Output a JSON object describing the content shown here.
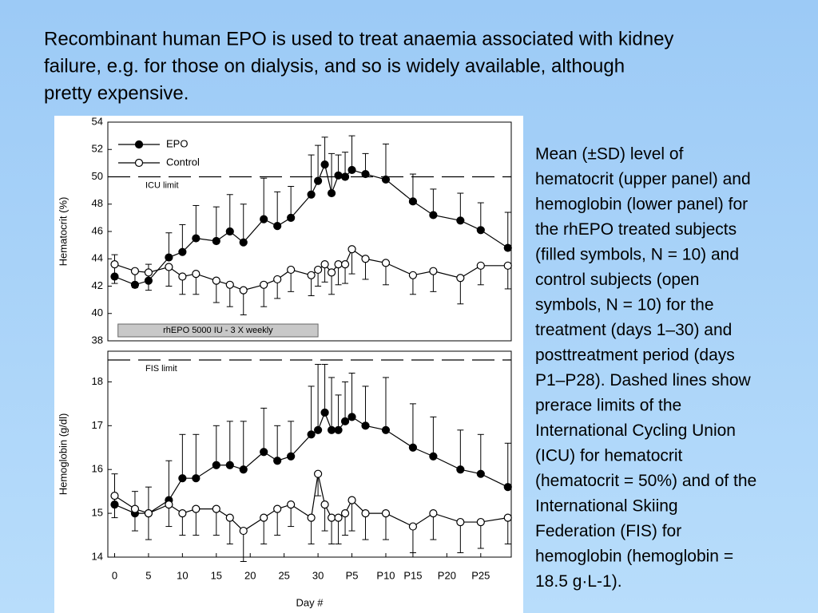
{
  "heading": [
    "Recombinant human EPO is used to treat anaemia associated with kidney",
    "failure, e.g. for those on dialysis, and so is widely available, although",
    "pretty expensive."
  ],
  "caption": [
    "Mean (±SD) level of",
    "hematocrit (upper panel) and",
    "hemoglobin (lower panel) for",
    "the rhEPO treated subjects",
    "(filled symbols, N = 10) and",
    "control subjects (open",
    "symbols, N = 10) for the",
    "treatment (days 1–30) and",
    "posttreatment period (days",
    "P1–P28). Dashed lines show",
    "prerace limits of the",
    "International Cycling Union",
    "(ICU) for hematocrit",
    "(hematocrit = 50%) and of the",
    "International Skiing",
    "Federation (FIS) for",
    "hemoglobin (hemoglobin =",
    "18.5 g·L-1)."
  ],
  "chart_data": [
    {
      "type": "line",
      "ylabel": "Hematocrit (%)",
      "legend": true,
      "x": [
        0,
        3,
        5,
        8,
        10,
        12,
        15,
        17,
        19,
        22,
        24,
        26,
        29,
        30,
        31,
        32,
        33,
        34,
        35,
        37,
        40,
        44,
        47,
        51,
        54,
        58
      ],
      "xlim": [
        -1,
        58.5
      ],
      "ylim": [
        38,
        54
      ],
      "yticks": [
        38,
        40,
        42,
        44,
        46,
        48,
        50,
        52,
        54
      ],
      "reference_line": {
        "value": 50,
        "label": "ICU limit"
      },
      "annotation": {
        "text": "rhEPO 5000 IU - 3 X weekly",
        "x": [
          0.5,
          30
        ]
      },
      "series": [
        {
          "name": "EPO",
          "color": "#000000",
          "marker_fill": "#000000",
          "error_direction": "up",
          "values": [
            42.7,
            42.1,
            42.4,
            44.1,
            44.5,
            45.5,
            45.3,
            46.0,
            45.2,
            46.9,
            46.4,
            47.0,
            48.7,
            49.7,
            50.9,
            48.8,
            50.1,
            50.0,
            50.5,
            50.2,
            49.8,
            48.2,
            47.2,
            46.8,
            46.1,
            44.8
          ],
          "errors": [
            1.6,
            1.0,
            1.2,
            1.8,
            2.0,
            2.4,
            2.5,
            2.7,
            2.8,
            3.0,
            2.5,
            2.3,
            2.9,
            2.6,
            2.0,
            2.9,
            1.5,
            1.8,
            2.5,
            1.5,
            2.6,
            2.0,
            1.9,
            2.0,
            2.0,
            2.6
          ]
        },
        {
          "name": "Control",
          "color": "#000000",
          "marker_fill": "#ffffff",
          "error_direction": "down",
          "values": [
            43.6,
            43.1,
            43.0,
            43.4,
            42.7,
            42.9,
            42.4,
            42.1,
            41.7,
            42.1,
            42.5,
            43.2,
            42.8,
            43.2,
            43.6,
            43.0,
            43.6,
            43.6,
            44.7,
            44.0,
            43.7,
            42.8,
            43.1,
            42.6,
            43.5,
            43.5
          ],
          "errors": [
            1.4,
            1.2,
            1.3,
            1.4,
            1.3,
            1.5,
            1.6,
            1.6,
            1.8,
            1.6,
            1.4,
            1.6,
            1.5,
            1.2,
            1.3,
            1.6,
            1.5,
            1.4,
            1.8,
            1.5,
            1.6,
            1.4,
            1.5,
            1.9,
            1.4,
            1.7
          ]
        }
      ]
    },
    {
      "type": "line",
      "ylabel": "Hemoglobin (g/dl)",
      "xlabel": "Day #",
      "legend": false,
      "x": [
        0,
        3,
        5,
        8,
        10,
        12,
        15,
        17,
        19,
        22,
        24,
        26,
        29,
        30,
        31,
        32,
        33,
        34,
        35,
        37,
        40,
        44,
        47,
        51,
        54,
        58
      ],
      "xlim": [
        -1,
        58.5
      ],
      "ylim": [
        14,
        18.7
      ],
      "yticks": [
        14,
        15,
        16,
        17,
        18
      ],
      "xticks": [
        0,
        5,
        10,
        15,
        20,
        25,
        30,
        {
          "value": 35,
          "label": "P5"
        },
        {
          "value": 40,
          "label": "P10"
        },
        {
          "value": 44,
          "label": "P15"
        },
        {
          "value": 49,
          "label": "P20"
        },
        {
          "value": 54,
          "label": "P25"
        }
      ],
      "reference_line": {
        "value": 18.5,
        "label": "FIS limit"
      },
      "series": [
        {
          "color": "#000000",
          "marker_fill": "#000000",
          "error_direction": "up",
          "values": [
            15.2,
            15.0,
            15.0,
            15.3,
            15.8,
            15.8,
            16.1,
            16.1,
            16.0,
            16.4,
            16.2,
            16.3,
            16.8,
            16.9,
            17.3,
            16.9,
            16.9,
            17.1,
            17.2,
            17.0,
            16.9,
            16.5,
            16.3,
            16.0,
            15.9,
            15.6
          ],
          "errors": [
            0.7,
            0.5,
            0.6,
            0.9,
            1.0,
            1.0,
            0.9,
            1.0,
            1.1,
            1.0,
            0.8,
            0.8,
            1.1,
            1.5,
            1.1,
            1.2,
            0.8,
            0.9,
            1.0,
            0.9,
            1.2,
            1.0,
            0.9,
            0.9,
            0.9,
            1.0
          ]
        },
        {
          "color": "#000000",
          "marker_fill": "#ffffff",
          "error_direction": "down",
          "values": [
            15.4,
            15.1,
            15.0,
            15.2,
            15.0,
            15.1,
            15.1,
            14.9,
            14.6,
            14.9,
            15.1,
            15.2,
            14.9,
            15.9,
            15.2,
            14.9,
            14.9,
            15.0,
            15.3,
            15.0,
            15.0,
            14.7,
            15.0,
            14.8,
            14.8,
            14.9
          ],
          "errors": [
            0.5,
            0.5,
            0.6,
            0.5,
            0.5,
            0.6,
            0.6,
            0.6,
            0.7,
            0.6,
            0.6,
            0.5,
            0.6,
            0.5,
            0.6,
            0.6,
            0.6,
            0.5,
            0.7,
            0.6,
            0.6,
            0.6,
            0.6,
            0.7,
            0.6,
            0.6
          ]
        }
      ]
    }
  ]
}
